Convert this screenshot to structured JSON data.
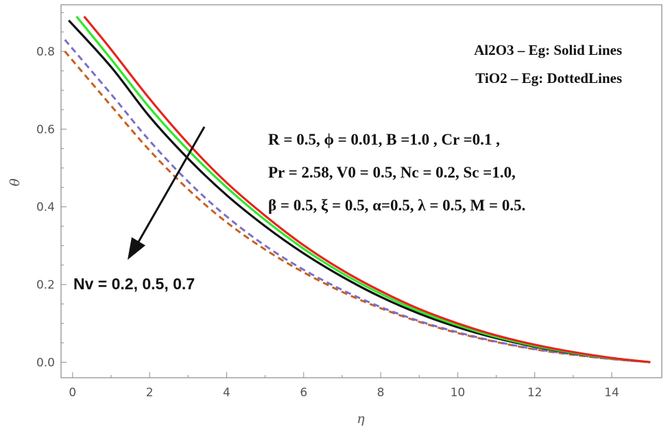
{
  "chart_data": {
    "type": "line",
    "title": "",
    "xlabel": "η",
    "ylabel": "θ",
    "xlim": [
      -0.3,
      15.3
    ],
    "ylim": [
      -0.04,
      0.92
    ],
    "xticks": [
      0,
      2,
      4,
      6,
      8,
      10,
      12,
      14
    ],
    "yticks": [
      0.0,
      0.2,
      0.4,
      0.6,
      0.8
    ],
    "xtick_labels": [
      "0",
      "2",
      "4",
      "6",
      "8",
      "10",
      "12",
      "14"
    ],
    "ytick_labels": [
      "0.0",
      "0.2",
      "0.4",
      "0.6",
      "0.8"
    ],
    "legend": [
      "Al2O3 – Eg: Solid Lines",
      "TiO2 – Eg: DottedLines"
    ],
    "parameters": [
      "R = 0.5, ϕ = 0.01, B =1.0 , Cr =0.1 ,",
      "Pr = 2.58, V0 = 0.5, Nc = 0.2, Sc =1.0,",
      "β = 0.5, ξ = 0.5,  α=0.5, λ = 0.5, M = 0.5."
    ],
    "annotation": {
      "prefix": "Nv = ",
      "values": " 0.2, 0.5, 0.7",
      "arrow_direction": "down-left"
    },
    "series": [
      {
        "name": "Al2O3-Eg Nv=0.2",
        "style": "solid",
        "color": "#e8231f",
        "x": [
          0.3,
          1,
          2,
          3,
          4,
          5,
          6,
          7,
          8,
          9,
          10,
          11,
          12,
          13,
          14,
          15
        ],
        "y": [
          0.89,
          0.805,
          0.678,
          0.563,
          0.462,
          0.377,
          0.301,
          0.237,
          0.183,
          0.137,
          0.1,
          0.069,
          0.045,
          0.026,
          0.011,
          0.0
        ]
      },
      {
        "name": "Al2O3-Eg Nv=0.5",
        "style": "solid",
        "color": "#2ee82a",
        "x": [
          0.1,
          1,
          2,
          3,
          4,
          5,
          6,
          7,
          8,
          9,
          10,
          11,
          12,
          13,
          14,
          15
        ],
        "y": [
          0.89,
          0.78,
          0.655,
          0.546,
          0.45,
          0.366,
          0.292,
          0.229,
          0.176,
          0.131,
          0.095,
          0.065,
          0.042,
          0.024,
          0.01,
          0.0
        ]
      },
      {
        "name": "Al2O3-Eg Nv=0.7",
        "style": "solid",
        "color": "#111111",
        "x": [
          -0.1,
          1,
          2,
          3,
          4,
          5,
          6,
          7,
          8,
          9,
          10,
          11,
          12,
          13,
          14,
          15
        ],
        "y": [
          0.88,
          0.76,
          0.632,
          0.524,
          0.43,
          0.35,
          0.28,
          0.22,
          0.168,
          0.125,
          0.09,
          0.062,
          0.04,
          0.023,
          0.01,
          0.0
        ]
      },
      {
        "name": "TiO2-Eg Nv=0.2",
        "style": "dashed",
        "color": "#7b6fc7",
        "x": [
          -0.2,
          1,
          2,
          3,
          4,
          5,
          6,
          7,
          8,
          9,
          10,
          11,
          12,
          13,
          14,
          15
        ],
        "y": [
          0.83,
          0.69,
          0.57,
          0.465,
          0.375,
          0.3,
          0.238,
          0.186,
          0.142,
          0.106,
          0.077,
          0.053,
          0.034,
          0.02,
          0.008,
          0.0
        ]
      },
      {
        "name": "TiO2-Eg Nv=0.5",
        "style": "dashed",
        "color": "#c8611e",
        "x": [
          -0.2,
          1,
          2,
          3,
          4,
          5,
          6,
          7,
          8,
          9,
          10,
          11,
          12,
          13,
          14,
          15
        ],
        "y": [
          0.8,
          0.66,
          0.545,
          0.445,
          0.36,
          0.29,
          0.231,
          0.181,
          0.139,
          0.104,
          0.075,
          0.052,
          0.033,
          0.019,
          0.008,
          0.0
        ]
      }
    ]
  }
}
